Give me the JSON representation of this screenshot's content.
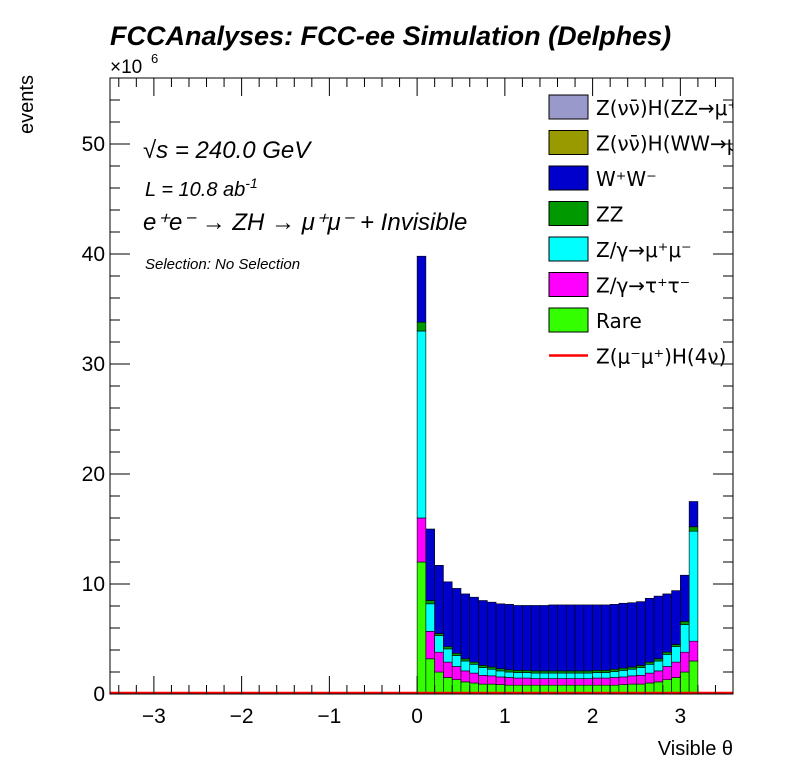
{
  "chart_data": {
    "type": "stacked-histogram",
    "title": "FCCAnalyses: FCC-ee Simulation (Delphes)",
    "xlabel": "Visible θ",
    "ylabel": "events",
    "y_multiplier": "×10",
    "y_multiplier_exp": "6",
    "xlim": [
      -3.5,
      3.6
    ],
    "ylim": [
      0,
      56
    ],
    "xticks": [
      "−3",
      "−2",
      "−1",
      "0",
      "1",
      "2",
      "3"
    ],
    "yticks": [
      "0",
      "10",
      "20",
      "30",
      "40",
      "50"
    ],
    "bin_edges": [
      0.0,
      0.1,
      0.2,
      0.3,
      0.4,
      0.5,
      0.6,
      0.7,
      0.8,
      0.9,
      1.0,
      1.1,
      1.2,
      1.3,
      1.4,
      1.5,
      1.6,
      1.7,
      1.8,
      1.9,
      2.0,
      2.1,
      2.2,
      2.3,
      2.4,
      2.5,
      2.6,
      2.7,
      2.8,
      2.9,
      3.0,
      3.1,
      3.2
    ],
    "series": [
      {
        "name": "Rare",
        "color": "#33ff00",
        "values": [
          12.0,
          3.2,
          2.0,
          1.5,
          1.3,
          1.1,
          1.0,
          0.9,
          0.9,
          0.85,
          0.8,
          0.8,
          0.8,
          0.8,
          0.8,
          0.8,
          0.8,
          0.8,
          0.8,
          0.8,
          0.8,
          0.8,
          0.8,
          0.85,
          0.9,
          0.9,
          1.0,
          1.1,
          1.3,
          1.5,
          2.0,
          3.0
        ]
      },
      {
        "name": "Z/γ→τ⁺τ⁻",
        "color": "#ff00ff",
        "values": [
          4.0,
          2.5,
          1.8,
          1.4,
          1.2,
          1.0,
          0.9,
          0.8,
          0.75,
          0.7,
          0.7,
          0.65,
          0.65,
          0.6,
          0.6,
          0.6,
          0.6,
          0.6,
          0.6,
          0.6,
          0.65,
          0.65,
          0.7,
          0.7,
          0.75,
          0.8,
          0.9,
          1.0,
          1.2,
          1.4,
          1.8,
          1.8
        ]
      },
      {
        "name": "Z/γ→μ⁺μ⁻",
        "color": "#00ffff",
        "values": [
          17.0,
          2.5,
          1.5,
          1.2,
          1.0,
          0.9,
          0.8,
          0.7,
          0.6,
          0.55,
          0.5,
          0.5,
          0.5,
          0.5,
          0.5,
          0.5,
          0.5,
          0.5,
          0.5,
          0.5,
          0.5,
          0.5,
          0.55,
          0.6,
          0.6,
          0.7,
          0.8,
          0.9,
          1.1,
          1.4,
          2.5,
          10.0
        ]
      },
      {
        "name": "ZZ",
        "color": "#009900",
        "values": [
          0.8,
          0.3,
          0.2,
          0.2,
          0.2,
          0.2,
          0.2,
          0.2,
          0.2,
          0.2,
          0.2,
          0.2,
          0.2,
          0.2,
          0.2,
          0.2,
          0.2,
          0.2,
          0.2,
          0.2,
          0.2,
          0.2,
          0.2,
          0.2,
          0.2,
          0.2,
          0.2,
          0.2,
          0.2,
          0.2,
          0.3,
          0.4
        ]
      },
      {
        "name": "W⁺W⁻",
        "color": "#0000cc",
        "values": [
          6.0,
          6.5,
          6.2,
          5.9,
          5.9,
          5.9,
          5.9,
          5.9,
          5.9,
          5.9,
          5.95,
          5.9,
          5.9,
          5.95,
          5.95,
          6.0,
          6.0,
          6.0,
          6.0,
          6.0,
          5.95,
          5.95,
          5.9,
          5.9,
          5.85,
          5.8,
          5.8,
          5.7,
          5.3,
          4.9,
          4.2,
          2.3
        ]
      },
      {
        "name": "Z(νν̄)H(WW→μ⁺νμ⁻ν̄)",
        "color": "#999900",
        "values": [
          0.0,
          0.0,
          0.0,
          0.0,
          0.0,
          0.0,
          0.0,
          0.0,
          0.0,
          0.0,
          0.0,
          0.0,
          0.0,
          0.0,
          0.0,
          0.0,
          0.0,
          0.0,
          0.0,
          0.0,
          0.0,
          0.0,
          0.0,
          0.0,
          0.0,
          0.0,
          0.0,
          0.0,
          0.0,
          0.0,
          0.0,
          0.0
        ]
      },
      {
        "name": "Z(νν̄)H(ZZ→μ⁺μ⁻νν̄)",
        "color": "#9999cc",
        "values": [
          0.0,
          0.0,
          0.0,
          0.0,
          0.0,
          0.0,
          0.0,
          0.0,
          0.0,
          0.0,
          0.0,
          0.0,
          0.0,
          0.0,
          0.0,
          0.0,
          0.0,
          0.0,
          0.0,
          0.0,
          0.0,
          0.0,
          0.0,
          0.0,
          0.0,
          0.0,
          0.0,
          0.0,
          0.0,
          0.0,
          0.0,
          0.0
        ]
      }
    ],
    "signal_line": {
      "name": "Z(μ⁻μ⁺)H(4ν)",
      "color": "#ff0000",
      "value": 0.0
    },
    "legend_order": [
      {
        "label": "Z(νν̄)H(ZZ→μ⁺μ⁻ν⁺",
        "color": "#9999cc",
        "style": "box"
      },
      {
        "label": "Z(νν̄)H(WW→μ⁺νμ",
        "color": "#999900",
        "style": "box"
      },
      {
        "label": "W⁺W⁻",
        "color": "#0000cc",
        "style": "box"
      },
      {
        "label": "ZZ",
        "color": "#009900",
        "style": "box"
      },
      {
        "label": "Z/γ→μ⁺μ⁻",
        "color": "#00ffff",
        "style": "box"
      },
      {
        "label": "Z/γ→τ⁺τ⁻",
        "color": "#ff00ff",
        "style": "box"
      },
      {
        "label": "Rare",
        "color": "#33ff00",
        "style": "box"
      },
      {
        "label": "Z(μ⁻μ⁺)H(4ν)",
        "color": "#ff0000",
        "style": "line"
      }
    ],
    "legend_position": "top-right",
    "annotations": {
      "sqrt_s": "√s = 240.0 GeV",
      "lumi_base": "L = 10.8 ab",
      "lumi_exp": "-1",
      "process": "e⁺e⁻ → ZH → μ⁺μ⁻ + Invisible",
      "selection": "Selection: No Selection"
    }
  }
}
